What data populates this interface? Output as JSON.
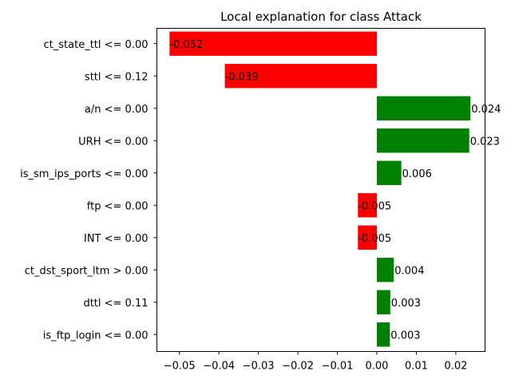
{
  "chart_data": {
    "type": "bar",
    "orientation": "horizontal",
    "title": "Local explanation for class Attack",
    "xlabel": "",
    "ylabel": "",
    "categories": [
      "ct_state_ttl <= 0.00",
      "sttl <= 0.12",
      "a/n <= 0.00",
      "URH <= 0.00",
      "is_sm_ips_ports <= 0.00",
      "ftp <= 0.00",
      "INT <= 0.00",
      "ct_dst_sport_ltm > 0.00",
      "dttl <= 0.11",
      "is_ftp_login <= 0.00"
    ],
    "values": [
      -0.0525,
      -0.0385,
      0.0237,
      0.0234,
      0.0062,
      -0.0048,
      -0.0048,
      0.0043,
      0.0034,
      0.0033
    ],
    "value_labels": [
      "-0.052",
      "-0.039",
      "0.024",
      "0.023",
      "0.006",
      "-0.005",
      "-0.005",
      "0.004",
      "0.003",
      "0.003"
    ],
    "xlim": [
      -0.0557,
      0.0274
    ],
    "xticks": [
      -0.05,
      -0.04,
      -0.03,
      -0.02,
      -0.01,
      0.0,
      0.01,
      0.02
    ],
    "xtick_labels": [
      "−0.05",
      "−0.04",
      "−0.03",
      "−0.02",
      "−0.01",
      "0.00",
      "0.01",
      "0.02"
    ],
    "grid": false,
    "legend": "none",
    "colors": {
      "positive": "#008000",
      "negative": "#ff0000"
    }
  }
}
